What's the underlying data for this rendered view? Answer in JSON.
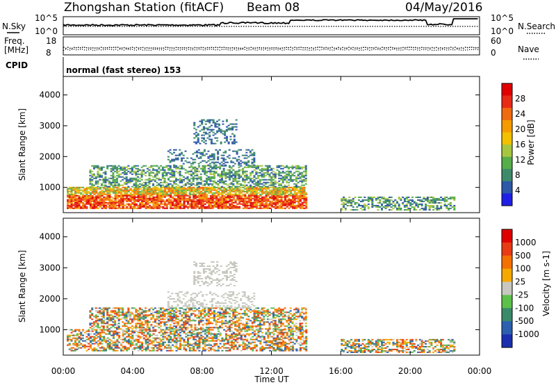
{
  "header": {
    "title": "Zhongshan Station (fitACF)",
    "beam": "Beam 08",
    "date": "04/May/2016"
  },
  "top_panels": {
    "nsky_label": "N.Sky",
    "nsky_ticks": [
      "10^5",
      "10^0"
    ],
    "nsearch_label": "N.Search",
    "nsearch_ticks": [
      "10^5",
      "10^0"
    ],
    "freq_label_1": "Freq.",
    "freq_label_2": "[MHz]",
    "freq_ticks": [
      "18",
      "8"
    ],
    "nave_label": "Nave",
    "nave_ticks": [
      "60",
      "0"
    ],
    "cpid_label": "CPID",
    "cpid_text": "normal (fast stereo) 153"
  },
  "chart_data": [
    {
      "type": "heatmap",
      "name": "power",
      "ylabel": "Slant Range [km]",
      "xlabel": "",
      "xlim": [
        0,
        24
      ],
      "ylim": [
        180,
        4600
      ],
      "y_ticks": [
        1000,
        2000,
        3000,
        4000
      ],
      "colorbar": {
        "label": "Power [dB]",
        "ticks": [
          "4",
          "8",
          "12",
          "16",
          "20",
          "24",
          "28"
        ],
        "colors": [
          "#1f1fe6",
          "#2e58a8",
          "#3d8a6b",
          "#56ad4a",
          "#a7c640",
          "#f2c000",
          "#f59a00",
          "#f06a10",
          "#e82a16",
          "#e00000"
        ]
      },
      "regions": [
        {
          "x": [
            0.2,
            14.0
          ],
          "y": [
            300,
            1000
          ],
          "level": "high"
        },
        {
          "x": [
            1.5,
            14.0
          ],
          "y": [
            1000,
            1700
          ],
          "level": "mid"
        },
        {
          "x": [
            6.0,
            11.0
          ],
          "y": [
            1700,
            2200
          ],
          "level": "low"
        },
        {
          "x": [
            7.5,
            10.0
          ],
          "y": [
            2400,
            3200
          ],
          "level": "low"
        },
        {
          "x": [
            16.0,
            22.5
          ],
          "y": [
            250,
            700
          ],
          "level": "mid"
        }
      ]
    },
    {
      "type": "heatmap",
      "name": "velocity",
      "ylabel": "Slant Range [km]",
      "xlabel": "Time UT",
      "xlim": [
        0,
        24
      ],
      "ylim": [
        180,
        4600
      ],
      "x_ticks": [
        "00:00",
        "04:00",
        "08:00",
        "12:00",
        "16:00",
        "20:00",
        "00:00"
      ],
      "y_ticks": [
        1000,
        2000,
        3000,
        4000
      ],
      "colorbar": {
        "label": "Velocity [m s-1]",
        "ticks": [
          "1000",
          "500",
          "100",
          "25",
          "-25",
          "-100",
          "-500",
          "-1000"
        ],
        "colors": [
          "#1a2fb0",
          "#2c5fb0",
          "#3a8a6a",
          "#5cc04a",
          "#c8c8c0",
          "#f4a800",
          "#f47000",
          "#e83a14",
          "#e00000"
        ]
      },
      "regions": [
        {
          "x": [
            0.2,
            14.0
          ],
          "y": [
            300,
            1000
          ],
          "level": "mixed"
        },
        {
          "x": [
            1.5,
            14.0
          ],
          "y": [
            1000,
            1700
          ],
          "level": "mixed"
        },
        {
          "x": [
            6.0,
            11.0
          ],
          "y": [
            1700,
            2200
          ],
          "level": "near-zero"
        },
        {
          "x": [
            7.5,
            10.0
          ],
          "y": [
            2400,
            3200
          ],
          "level": "near-zero"
        },
        {
          "x": [
            16.0,
            22.5
          ],
          "y": [
            250,
            700
          ],
          "level": "mixed"
        }
      ]
    }
  ]
}
